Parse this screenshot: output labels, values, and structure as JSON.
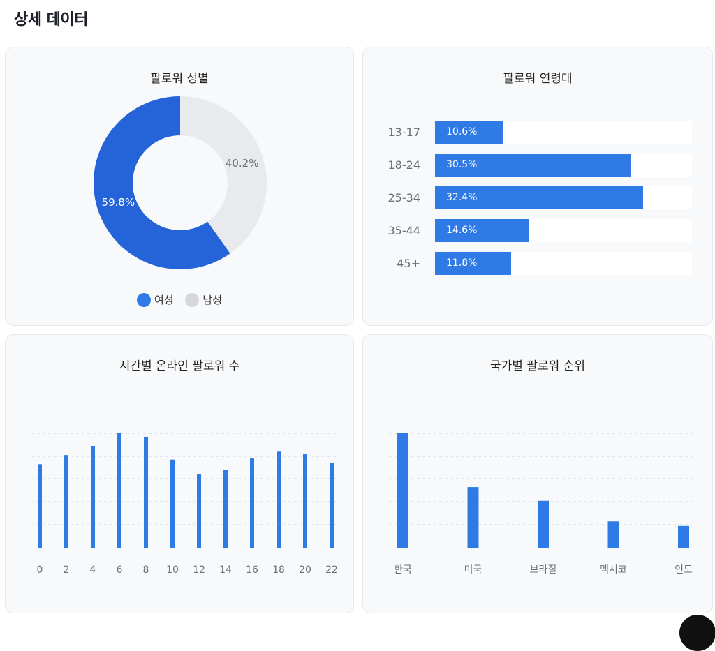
{
  "page": {
    "title": "상세 데이터"
  },
  "colors": {
    "primary": "#2f7ae5",
    "donut_female": "#2563d9",
    "donut_male": "#e9eaee",
    "legend_male": "#d6d8dc",
    "grid": "#cfd3d8"
  },
  "chart_data": [
    {
      "type": "pie",
      "title": "팔로워 성별",
      "donut": true,
      "slices": [
        {
          "label": "여성",
          "value": 59.8,
          "display": "59.8%"
        },
        {
          "label": "남성",
          "value": 40.2,
          "display": "40.2%"
        }
      ],
      "legend": [
        "여성",
        "남성"
      ]
    },
    {
      "type": "bar",
      "orientation": "horizontal",
      "title": "팔로워 연령대",
      "categories": [
        "13-17",
        "18-24",
        "25-34",
        "35-44",
        "45+"
      ],
      "values": [
        10.6,
        30.5,
        32.4,
        14.6,
        11.8
      ],
      "value_labels": [
        "10.6%",
        "30.5%",
        "32.4%",
        "14.6%",
        "11.8%"
      ],
      "xlim": [
        0,
        40
      ]
    },
    {
      "type": "bar",
      "title": "시간별 온라인 팔로워 수",
      "categories": [
        "0",
        "2",
        "4",
        "6",
        "8",
        "10",
        "12",
        "14",
        "16",
        "18",
        "20",
        "22"
      ],
      "values": [
        73,
        81,
        89,
        100,
        97,
        77,
        64,
        68,
        78,
        84,
        82,
        74
      ],
      "ylim": [
        0,
        100
      ],
      "grid": true
    },
    {
      "type": "bar",
      "title": "국가별 팔로워 순위",
      "categories": [
        "한국",
        "미국",
        "브라질",
        "멕시코",
        "인도"
      ],
      "values": [
        100,
        53,
        41,
        23,
        19
      ],
      "ylim": [
        0,
        100
      ],
      "grid": true
    }
  ]
}
